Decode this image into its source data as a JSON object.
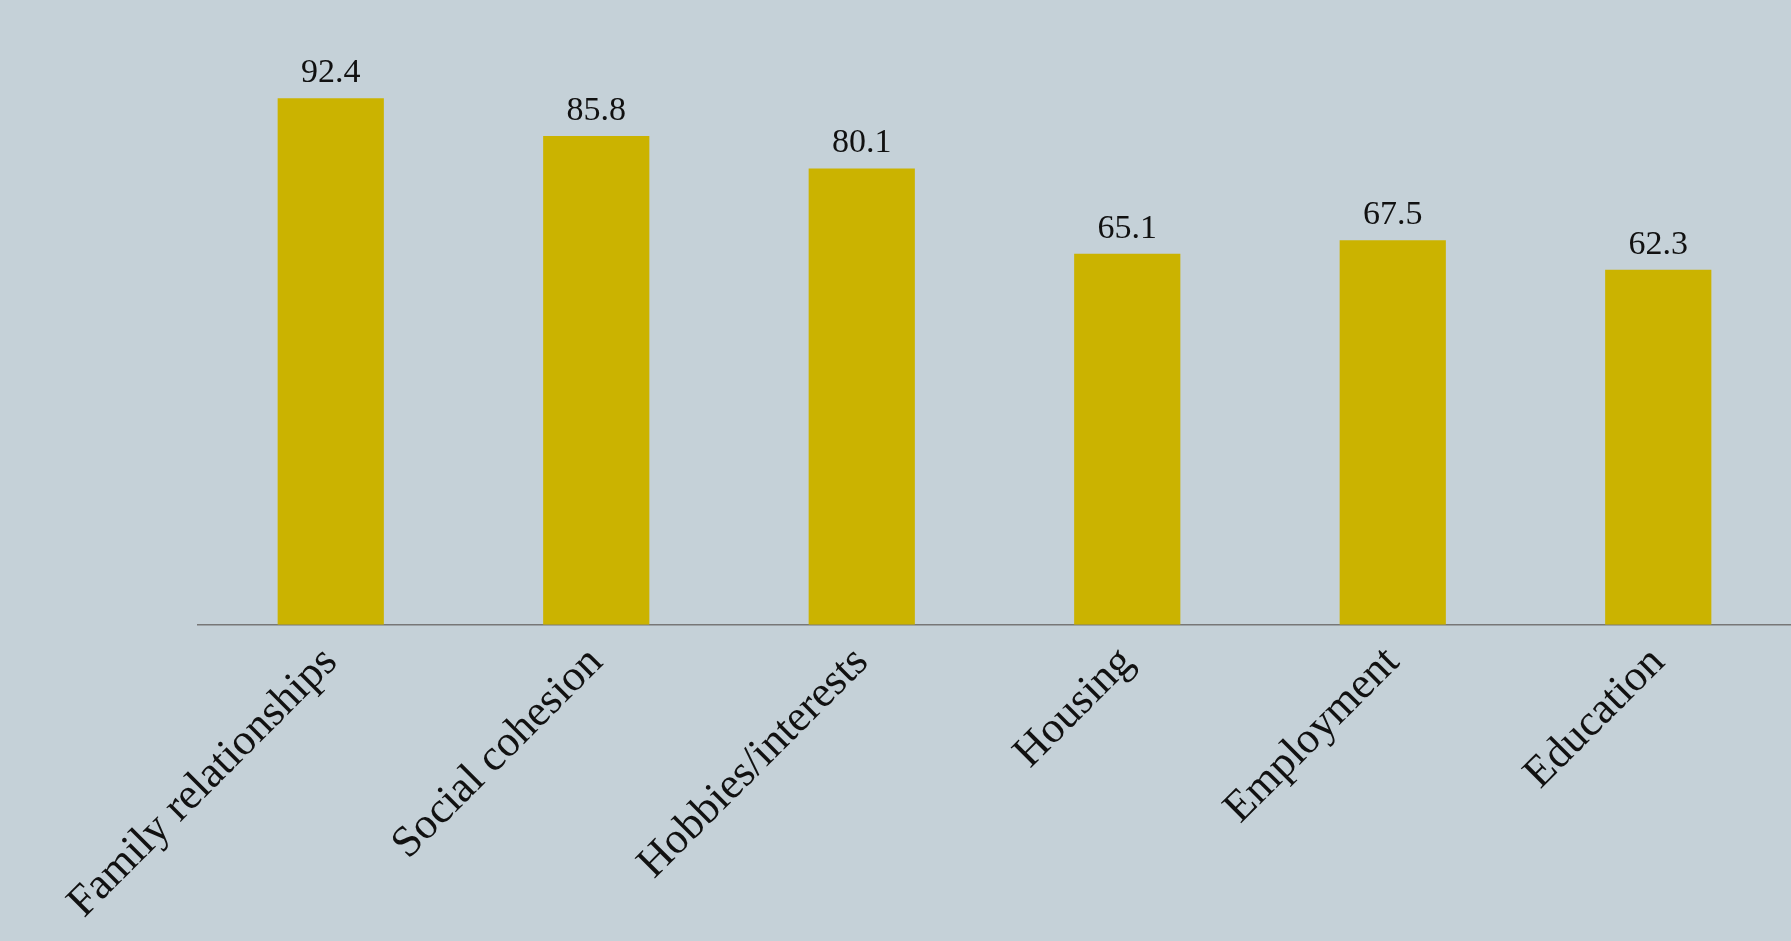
{
  "chart_data": {
    "type": "bar",
    "categories": [
      "Family relationships",
      "Social cohesion",
      "Hobbies/interests",
      "Housing",
      "Employment",
      "Education"
    ],
    "values": [
      92.4,
      85.8,
      80.1,
      65.1,
      67.5,
      62.3
    ],
    "color": "#cbb300",
    "data_labels": true,
    "grid": false,
    "legend": false
  }
}
